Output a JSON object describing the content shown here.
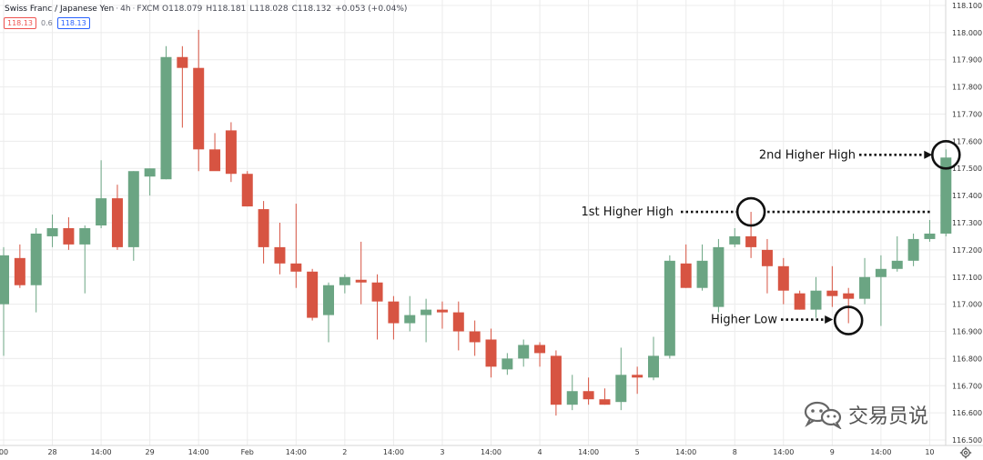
{
  "header": {
    "symbol": "Swiss Franc / Japanese Yen",
    "interval": "4h",
    "exchange": "FXCM",
    "open": "O118.079",
    "high": "H118.181",
    "low": "L118.028",
    "close": "C118.132",
    "change": "+0.053 (+0.04%)",
    "sell_price": "118.13",
    "spread": "0.6",
    "buy_price": "118.13"
  },
  "watermark": {
    "text": "交易员说",
    "icon": "wechat-icon"
  },
  "colors": {
    "up": "#6ba583",
    "down": "#d75442",
    "grid": "#ececec",
    "axis_text": "#333333",
    "annotation": "#111111"
  },
  "chart_data": {
    "type": "candlestick",
    "title": "",
    "y_axis": {
      "min": 116.48,
      "max": 118.12,
      "ticks": [
        116.5,
        116.6,
        116.7,
        116.8,
        116.9,
        117.0,
        117.1,
        117.2,
        117.3,
        117.4,
        117.5,
        117.6,
        117.7,
        117.8,
        117.9,
        118.0,
        118.1
      ],
      "tick_labels": [
        "116.500",
        "116.600",
        "116.700",
        "116.800",
        "116.900",
        "117.000",
        "117.100",
        "117.200",
        "117.300",
        "117.400",
        "117.500",
        "117.600",
        "117.700",
        "117.800",
        "117.900",
        "118.000",
        "118.100"
      ],
      "side": "right"
    },
    "x_axis": {
      "tick_labels": [
        {
          "bar": 0,
          "label": "00"
        },
        {
          "bar": 3,
          "label": "28"
        },
        {
          "bar": 6,
          "label": "14:00"
        },
        {
          "bar": 9,
          "label": "29"
        },
        {
          "bar": 12,
          "label": "14:00"
        },
        {
          "bar": 15,
          "label": "Feb"
        },
        {
          "bar": 18,
          "label": "14:00"
        },
        {
          "bar": 21,
          "label": "2"
        },
        {
          "bar": 24,
          "label": "14:00"
        },
        {
          "bar": 27,
          "label": "3"
        },
        {
          "bar": 30,
          "label": "14:00"
        },
        {
          "bar": 33,
          "label": "4"
        },
        {
          "bar": 36,
          "label": "14:00"
        },
        {
          "bar": 39,
          "label": "5"
        },
        {
          "bar": 42,
          "label": "14:00"
        },
        {
          "bar": 45,
          "label": "8"
        },
        {
          "bar": 48,
          "label": "14:00"
        },
        {
          "bar": 51,
          "label": "9"
        },
        {
          "bar": 54,
          "label": "14:00"
        },
        {
          "bar": 57,
          "label": "10"
        }
      ]
    },
    "grid": true,
    "candles": [
      {
        "o": 117.0,
        "h": 117.21,
        "l": 116.81,
        "c": 117.18
      },
      {
        "o": 117.17,
        "h": 117.22,
        "l": 117.06,
        "c": 117.07
      },
      {
        "o": 117.07,
        "h": 117.28,
        "l": 116.97,
        "c": 117.26
      },
      {
        "o": 117.25,
        "h": 117.33,
        "l": 117.21,
        "c": 117.28
      },
      {
        "o": 117.28,
        "h": 117.32,
        "l": 117.2,
        "c": 117.22
      },
      {
        "o": 117.22,
        "h": 117.29,
        "l": 117.04,
        "c": 117.28
      },
      {
        "o": 117.29,
        "h": 117.53,
        "l": 117.28,
        "c": 117.39
      },
      {
        "o": 117.39,
        "h": 117.44,
        "l": 117.2,
        "c": 117.21
      },
      {
        "o": 117.21,
        "h": 117.49,
        "l": 117.16,
        "c": 117.49
      },
      {
        "o": 117.47,
        "h": 117.5,
        "l": 117.4,
        "c": 117.5
      },
      {
        "o": 117.46,
        "h": 117.95,
        "l": 117.46,
        "c": 117.91
      },
      {
        "o": 117.91,
        "h": 117.95,
        "l": 117.65,
        "c": 117.87
      },
      {
        "o": 117.87,
        "h": 118.01,
        "l": 117.49,
        "c": 117.57
      },
      {
        "o": 117.57,
        "h": 117.63,
        "l": 117.5,
        "c": 117.49
      },
      {
        "o": 117.64,
        "h": 117.67,
        "l": 117.45,
        "c": 117.48
      },
      {
        "o": 117.48,
        "h": 117.49,
        "l": 117.36,
        "c": 117.36
      },
      {
        "o": 117.35,
        "h": 117.38,
        "l": 117.15,
        "c": 117.21
      },
      {
        "o": 117.21,
        "h": 117.3,
        "l": 117.11,
        "c": 117.15
      },
      {
        "o": 117.15,
        "h": 117.37,
        "l": 117.06,
        "c": 117.12
      },
      {
        "o": 117.12,
        "h": 117.13,
        "l": 116.94,
        "c": 116.95
      },
      {
        "o": 116.96,
        "h": 117.08,
        "l": 116.86,
        "c": 117.07
      },
      {
        "o": 117.07,
        "h": 117.11,
        "l": 117.04,
        "c": 117.1
      },
      {
        "o": 117.09,
        "h": 117.23,
        "l": 117.0,
        "c": 117.08
      },
      {
        "o": 117.08,
        "h": 117.11,
        "l": 116.87,
        "c": 117.01
      },
      {
        "o": 117.01,
        "h": 117.03,
        "l": 116.87,
        "c": 116.93
      },
      {
        "o": 116.93,
        "h": 117.03,
        "l": 116.9,
        "c": 116.96
      },
      {
        "o": 116.96,
        "h": 117.02,
        "l": 116.86,
        "c": 116.98
      },
      {
        "o": 116.98,
        "h": 117.01,
        "l": 116.91,
        "c": 116.97
      },
      {
        "o": 116.97,
        "h": 117.01,
        "l": 116.83,
        "c": 116.9
      },
      {
        "o": 116.9,
        "h": 116.94,
        "l": 116.81,
        "c": 116.86
      },
      {
        "o": 116.87,
        "h": 116.91,
        "l": 116.73,
        "c": 116.77
      },
      {
        "o": 116.76,
        "h": 116.82,
        "l": 116.74,
        "c": 116.8
      },
      {
        "o": 116.8,
        "h": 116.87,
        "l": 116.77,
        "c": 116.85
      },
      {
        "o": 116.85,
        "h": 116.86,
        "l": 116.77,
        "c": 116.82
      },
      {
        "o": 116.81,
        "h": 116.83,
        "l": 116.59,
        "c": 116.63
      },
      {
        "o": 116.63,
        "h": 116.74,
        "l": 116.61,
        "c": 116.68
      },
      {
        "o": 116.68,
        "h": 116.73,
        "l": 116.63,
        "c": 116.65
      },
      {
        "o": 116.65,
        "h": 116.69,
        "l": 116.63,
        "c": 116.63
      },
      {
        "o": 116.64,
        "h": 116.84,
        "l": 116.61,
        "c": 116.74
      },
      {
        "o": 116.74,
        "h": 116.77,
        "l": 116.67,
        "c": 116.73
      },
      {
        "o": 116.73,
        "h": 116.88,
        "l": 116.72,
        "c": 116.81
      },
      {
        "o": 116.81,
        "h": 117.18,
        "l": 116.8,
        "c": 117.16
      },
      {
        "o": 117.15,
        "h": 117.22,
        "l": 117.06,
        "c": 117.06
      },
      {
        "o": 117.06,
        "h": 117.22,
        "l": 117.05,
        "c": 117.16
      },
      {
        "o": 116.99,
        "h": 117.24,
        "l": 116.97,
        "c": 117.21
      },
      {
        "o": 117.22,
        "h": 117.28,
        "l": 117.21,
        "c": 117.25
      },
      {
        "o": 117.25,
        "h": 117.34,
        "l": 117.17,
        "c": 117.21
      },
      {
        "o": 117.2,
        "h": 117.24,
        "l": 117.04,
        "c": 117.14
      },
      {
        "o": 117.14,
        "h": 117.17,
        "l": 117.0,
        "c": 117.05
      },
      {
        "o": 117.04,
        "h": 117.05,
        "l": 116.98,
        "c": 116.98
      },
      {
        "o": 116.98,
        "h": 117.1,
        "l": 116.95,
        "c": 117.05
      },
      {
        "o": 117.05,
        "h": 117.14,
        "l": 116.99,
        "c": 117.03
      },
      {
        "o": 117.04,
        "h": 117.06,
        "l": 116.93,
        "c": 117.02
      },
      {
        "o": 117.02,
        "h": 117.17,
        "l": 117.0,
        "c": 117.1
      },
      {
        "o": 117.1,
        "h": 117.18,
        "l": 116.92,
        "c": 117.13
      },
      {
        "o": 117.13,
        "h": 117.25,
        "l": 117.12,
        "c": 117.16
      },
      {
        "o": 117.16,
        "h": 117.26,
        "l": 117.14,
        "c": 117.24
      },
      {
        "o": 117.24,
        "h": 117.31,
        "l": 117.23,
        "c": 117.26
      },
      {
        "o": 117.26,
        "h": 117.57,
        "l": 117.25,
        "c": 117.54
      }
    ],
    "annotations": [
      {
        "text": "2nd Higher High",
        "marker_bar": 58,
        "price": 117.55,
        "type": "circle-arrow"
      },
      {
        "text": "1st Higher High",
        "marker_bar": 46,
        "price": 117.34,
        "type": "circle-dotted-line",
        "line_to_bar": 58
      },
      {
        "text": "Higher Low",
        "marker_bar": 52,
        "price": 116.94,
        "type": "circle-arrow"
      }
    ]
  }
}
